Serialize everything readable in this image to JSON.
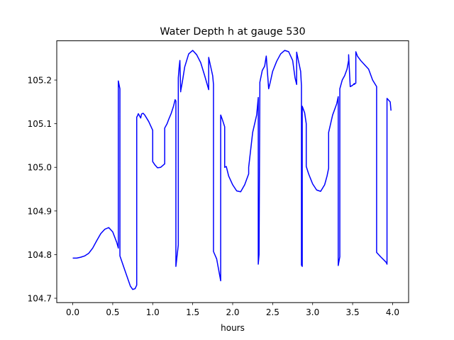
{
  "chart_data": {
    "type": "line",
    "title": "Water Depth h at gauge 530",
    "xlabel": "hours",
    "ylabel": "",
    "xlim": [
      -0.2,
      4.2
    ],
    "ylim": [
      104.69,
      105.29
    ],
    "xticks": [
      0.0,
      0.5,
      1.0,
      1.5,
      2.0,
      2.5,
      3.0,
      3.5,
      4.0
    ],
    "xtick_labels": [
      "0.0",
      "0.5",
      "1.0",
      "1.5",
      "2.0",
      "2.5",
      "3.0",
      "3.5",
      "4.0"
    ],
    "yticks": [
      104.7,
      104.8,
      104.9,
      105.0,
      105.1,
      105.2
    ],
    "ytick_labels": [
      "104.7",
      "104.8",
      "104.9",
      "105.0",
      "105.1",
      "105.2"
    ],
    "grid": false,
    "colors": {
      "line": "#0000ff",
      "axes": "#000000",
      "background": "#ffffff"
    },
    "series": [
      {
        "x": [
          0.0,
          0.05,
          0.1,
          0.15,
          0.2,
          0.25,
          0.3,
          0.35,
          0.4,
          0.45,
          0.5,
          0.55,
          0.57,
          0.57,
          0.59,
          0.59,
          0.65,
          0.72,
          0.75,
          0.78,
          0.8,
          0.8,
          0.81,
          0.82,
          0.85,
          0.86,
          0.88,
          0.9,
          0.95,
          1.0,
          1.0,
          1.03,
          1.06,
          1.1,
          1.15,
          1.15,
          1.18,
          1.2,
          1.23,
          1.26,
          1.28,
          1.29,
          1.29,
          1.32,
          1.32,
          1.33,
          1.34,
          1.35,
          1.35,
          1.37,
          1.4,
          1.45,
          1.5,
          1.55,
          1.6,
          1.65,
          1.7,
          1.7,
          1.72,
          1.75,
          1.76,
          1.76,
          1.8,
          1.84,
          1.85,
          1.85,
          1.87,
          1.9,
          1.9,
          1.92,
          1.95,
          2.0,
          2.05,
          2.1,
          2.15,
          2.2,
          2.2,
          2.25,
          2.3,
          2.32,
          2.32,
          2.33,
          2.34,
          2.34,
          2.37,
          2.4,
          2.42,
          2.45,
          2.45,
          2.47,
          2.5,
          2.55,
          2.6,
          2.65,
          2.7,
          2.75,
          2.78,
          2.8,
          2.8,
          2.85,
          2.86,
          2.86,
          2.87,
          2.87,
          2.9,
          2.92,
          2.92,
          2.95,
          3.0,
          3.05,
          3.1,
          3.15,
          3.18,
          3.2,
          3.2,
          3.25,
          3.3,
          3.32,
          3.32,
          3.34,
          3.34,
          3.37,
          3.4,
          3.43,
          3.45,
          3.45,
          3.47,
          3.5,
          3.52,
          3.52,
          3.54,
          3.54,
          3.56,
          3.6,
          3.65,
          3.7,
          3.75,
          3.8,
          3.8,
          3.85,
          3.9,
          3.92,
          3.93,
          3.93,
          3.97,
          3.98
        ],
        "y": [
          104.792,
          104.792,
          104.794,
          104.797,
          104.803,
          104.815,
          104.832,
          104.848,
          104.858,
          104.862,
          104.852,
          104.828,
          104.815,
          105.198,
          105.18,
          104.797,
          104.765,
          104.728,
          104.72,
          104.722,
          104.73,
          105.115,
          105.118,
          105.123,
          105.113,
          105.122,
          105.124,
          105.12,
          105.105,
          105.085,
          105.013,
          105.005,
          104.999,
          105.0,
          105.008,
          105.09,
          105.1,
          105.11,
          105.123,
          105.14,
          105.155,
          105.152,
          104.773,
          104.822,
          105.205,
          105.228,
          105.245,
          105.173,
          105.175,
          105.195,
          105.23,
          105.26,
          105.268,
          105.258,
          105.24,
          105.21,
          105.178,
          105.252,
          105.235,
          105.21,
          105.19,
          104.807,
          104.79,
          104.75,
          104.74,
          105.12,
          105.11,
          105.093,
          105.0,
          105.002,
          104.98,
          104.96,
          104.946,
          104.944,
          104.96,
          104.985,
          105.0,
          105.08,
          105.12,
          105.16,
          104.778,
          104.8,
          105.185,
          105.195,
          105.222,
          105.232,
          105.255,
          105.18,
          105.18,
          105.195,
          105.22,
          105.243,
          105.26,
          105.268,
          105.265,
          105.245,
          105.205,
          105.19,
          105.264,
          105.22,
          105.187,
          104.776,
          104.773,
          105.14,
          105.125,
          105.1,
          105.002,
          104.985,
          104.962,
          104.948,
          104.945,
          104.96,
          104.98,
          104.998,
          105.08,
          105.12,
          105.145,
          105.162,
          104.775,
          104.795,
          105.18,
          105.2,
          105.21,
          105.225,
          105.245,
          105.258,
          105.185,
          105.188,
          105.192,
          105.19,
          105.193,
          105.265,
          105.255,
          105.245,
          105.235,
          105.225,
          105.2,
          105.185,
          104.805,
          104.795,
          104.786,
          104.782,
          104.778,
          105.158,
          105.15,
          105.13
        ]
      }
    ]
  }
}
